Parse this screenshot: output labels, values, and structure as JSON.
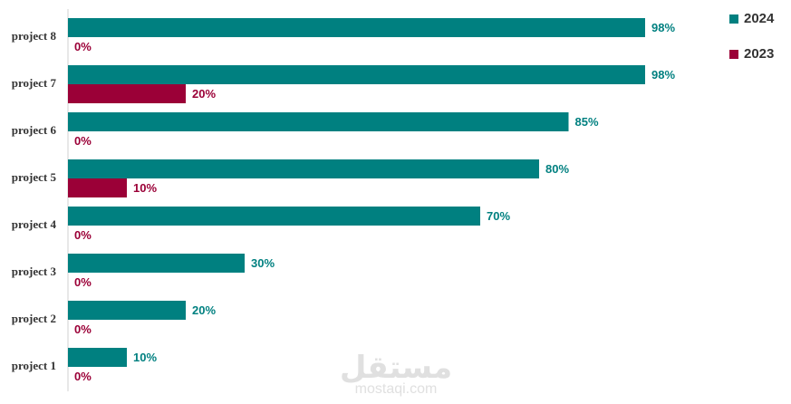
{
  "chart_data": {
    "type": "bar",
    "orientation": "horizontal",
    "categories": [
      "project 8",
      "project 7",
      "project 6",
      "project 5",
      "project 4",
      "project 3",
      "project 2",
      "project 1"
    ],
    "series": [
      {
        "name": "2024",
        "color": "#008080",
        "values": [
          98,
          98,
          85,
          80,
          70,
          30,
          20,
          10
        ],
        "value_labels": [
          "98%",
          "98%",
          "85%",
          "80%",
          "70%",
          "30%",
          "20%",
          "10%"
        ]
      },
      {
        "name": "2023",
        "color": "#9b0037",
        "values": [
          0,
          20,
          0,
          10,
          0,
          0,
          0,
          0
        ],
        "value_labels": [
          "0%",
          "20%",
          "0%",
          "10%",
          "0%",
          "0%",
          "0%",
          "0%"
        ]
      }
    ],
    "xlim": [
      0,
      100
    ],
    "legend": "top-right"
  },
  "watermark": {
    "arabic": "مستقل",
    "latin": "mostaqi.com"
  }
}
